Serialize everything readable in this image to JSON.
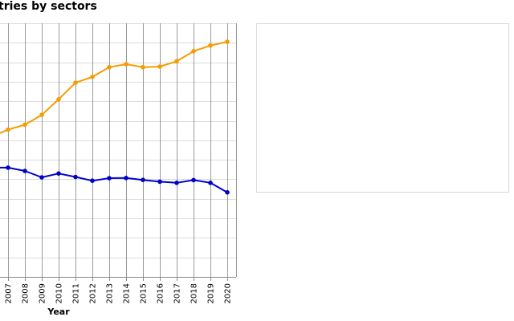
{
  "chart_data": {
    "type": "line",
    "title": "tries by sectors",
    "xlabel": "Year",
    "ylabel": "",
    "x": [
      "2007",
      "2008",
      "2009",
      "2010",
      "2011",
      "2012",
      "2013",
      "2014",
      "2015",
      "2016",
      "2017",
      "2018",
      "2019",
      "2020"
    ],
    "ylim": [
      0,
      13
    ],
    "grid": true,
    "series": [
      {
        "color": "#f59c00",
        "values": [
          7.55,
          7.8,
          8.3,
          9.1,
          9.95,
          10.25,
          10.75,
          10.9,
          10.75,
          10.78,
          11.05,
          11.57,
          11.86,
          12.05
        ]
      },
      {
        "color": "#0000cc",
        "values": [
          5.6,
          5.43,
          5.1,
          5.3,
          5.12,
          4.93,
          5.06,
          5.07,
          4.97,
          4.88,
          4.82,
          4.96,
          4.82,
          4.33
        ]
      }
    ]
  }
}
